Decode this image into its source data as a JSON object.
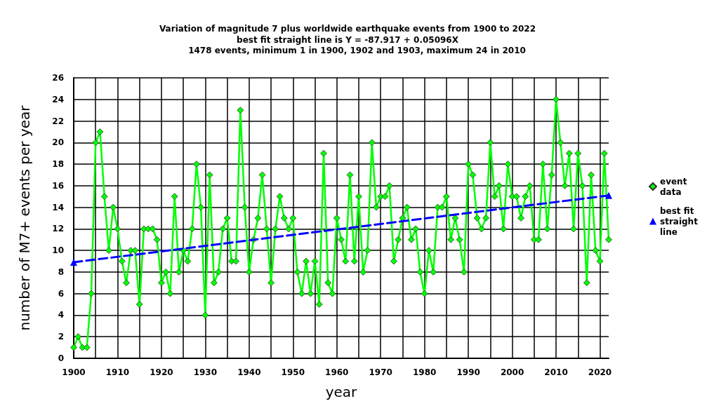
{
  "chart_data": {
    "type": "line",
    "title": "Variation of magnitude 7 plus worldwide earthquake events from 1900 to 2022",
    "subtitle": "best fit straight line is Y = -87.917 + 0.05096X",
    "annotations": [
      "1478 events, minimum 1 in 1900, 1902 and 1903, maximum 24 in 2010"
    ],
    "xlabel": "year",
    "ylabel": "number of M7+ events per year",
    "x": [
      1900,
      1901,
      1902,
      1903,
      1904,
      1905,
      1906,
      1907,
      1908,
      1909,
      1910,
      1911,
      1912,
      1913,
      1914,
      1915,
      1916,
      1917,
      1918,
      1919,
      1920,
      1921,
      1922,
      1923,
      1924,
      1925,
      1926,
      1927,
      1928,
      1929,
      1930,
      1931,
      1932,
      1933,
      1934,
      1935,
      1936,
      1937,
      1938,
      1939,
      1940,
      1941,
      1942,
      1943,
      1944,
      1945,
      1946,
      1947,
      1948,
      1949,
      1950,
      1951,
      1952,
      1953,
      1954,
      1955,
      1956,
      1957,
      1958,
      1959,
      1960,
      1961,
      1962,
      1963,
      1964,
      1965,
      1966,
      1967,
      1968,
      1969,
      1970,
      1971,
      1972,
      1973,
      1974,
      1975,
      1976,
      1977,
      1978,
      1979,
      1980,
      1981,
      1982,
      1983,
      1984,
      1985,
      1986,
      1987,
      1988,
      1989,
      1990,
      1991,
      1992,
      1993,
      1994,
      1995,
      1996,
      1997,
      1998,
      1999,
      2000,
      2001,
      2002,
      2003,
      2004,
      2005,
      2006,
      2007,
      2008,
      2009,
      2010,
      2011,
      2012,
      2013,
      2014,
      2015,
      2016,
      2017,
      2018,
      2019,
      2020,
      2021,
      2022
    ],
    "series": [
      {
        "name": "event data",
        "color": "#00ff00",
        "marker": "diamond",
        "line_style": "solid",
        "values": [
          1,
          2,
          1,
          1,
          6,
          20,
          21,
          15,
          10,
          14,
          12,
          9,
          7,
          10,
          10,
          5,
          12,
          12,
          12,
          11,
          7,
          8,
          6,
          15,
          8,
          10,
          9,
          12,
          18,
          14,
          4,
          17,
          7,
          8,
          12,
          13,
          9,
          9,
          23,
          14,
          8,
          11,
          13,
          17,
          12,
          7,
          12,
          15,
          13,
          12,
          13,
          8,
          6,
          9,
          6,
          9,
          5,
          19,
          7,
          6,
          13,
          11,
          9,
          17,
          9,
          15,
          8,
          10,
          20,
          14,
          15,
          15,
          16,
          9,
          11,
          13,
          14,
          11,
          12,
          8,
          6,
          10,
          8,
          14,
          14,
          15,
          11,
          13,
          11,
          8,
          18,
          17,
          13,
          12,
          13,
          20,
          15,
          16,
          12,
          18,
          15,
          15,
          13,
          15,
          16,
          11,
          11,
          18,
          12,
          17,
          24,
          20,
          16,
          19,
          12,
          19,
          16,
          7,
          17,
          10,
          9,
          19,
          11
        ]
      },
      {
        "name": "best fit straight line",
        "color": "#0000ff",
        "marker": "triangle",
        "line_style": "dashed",
        "x": [
          1900,
          2022
        ],
        "values": [
          8.9,
          15.1
        ]
      }
    ],
    "xlim": [
      1900,
      2022
    ],
    "xticks": [
      1900,
      {
        "value": 1905,
        "label": null
      },
      1910,
      {
        "value": 1915,
        "label": null
      },
      1920,
      {
        "value": 1925,
        "label": null
      },
      1930,
      {
        "value": 1935,
        "label": null
      },
      1940,
      {
        "value": 1945,
        "label": null
      },
      1950,
      {
        "value": 1955,
        "label": null
      },
      1960,
      {
        "value": 1965,
        "label": null
      },
      1970,
      {
        "value": 1975,
        "label": null
      },
      1980,
      {
        "value": 1985,
        "label": null
      },
      1990,
      {
        "value": 1995,
        "label": null
      },
      2000,
      {
        "value": 2005,
        "label": null
      },
      2010,
      {
        "value": 2015,
        "label": null
      },
      2020
    ],
    "ylim": [
      0,
      26
    ],
    "yticks": [
      0,
      2,
      4,
      6,
      8,
      10,
      12,
      14,
      16,
      18,
      20,
      22,
      24,
      26
    ],
    "grid": true,
    "legend": "right"
  }
}
